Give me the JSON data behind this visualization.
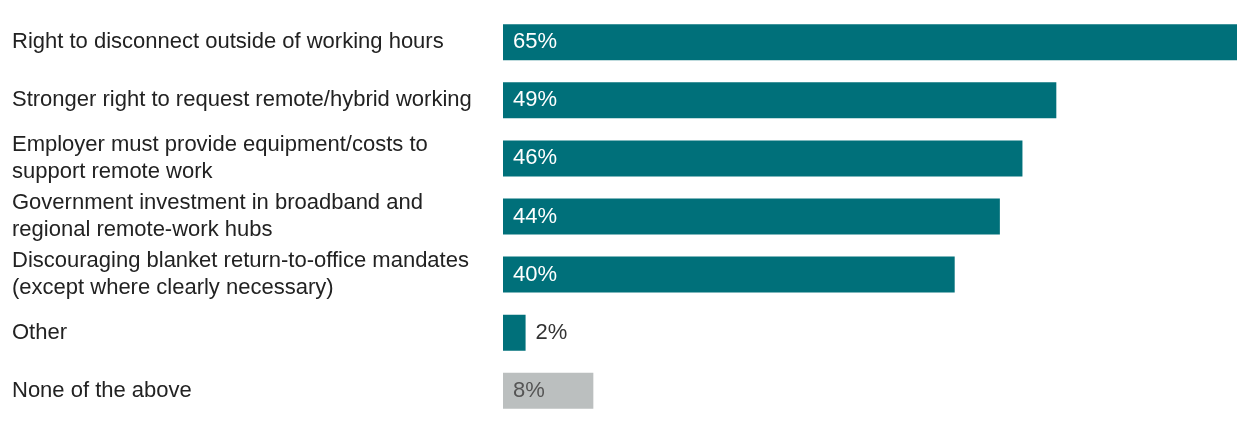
{
  "chart_data": {
    "type": "bar",
    "orientation": "horizontal",
    "categories": [
      "Right to disconnect outside of working hours",
      "Stronger right to request remote/hybrid working",
      "Employer must provide equipment/costs to support remote work",
      "Government investment in broadband and regional remote-work hubs",
      "Discouraging blanket return-to-office mandates (except where clearly necessary)",
      "Other",
      "None of the above"
    ],
    "values": [
      65,
      49,
      46,
      44,
      40,
      2,
      8
    ],
    "colors": [
      "#00707a",
      "#00707a",
      "#00707a",
      "#00707a",
      "#00707a",
      "#00707a",
      "#bbbfbf"
    ],
    "value_labels": [
      "65%",
      "49%",
      "46%",
      "44%",
      "40%",
      "2%",
      "8%"
    ],
    "xlim": [
      0,
      65
    ],
    "tick_labels": "y"
  }
}
